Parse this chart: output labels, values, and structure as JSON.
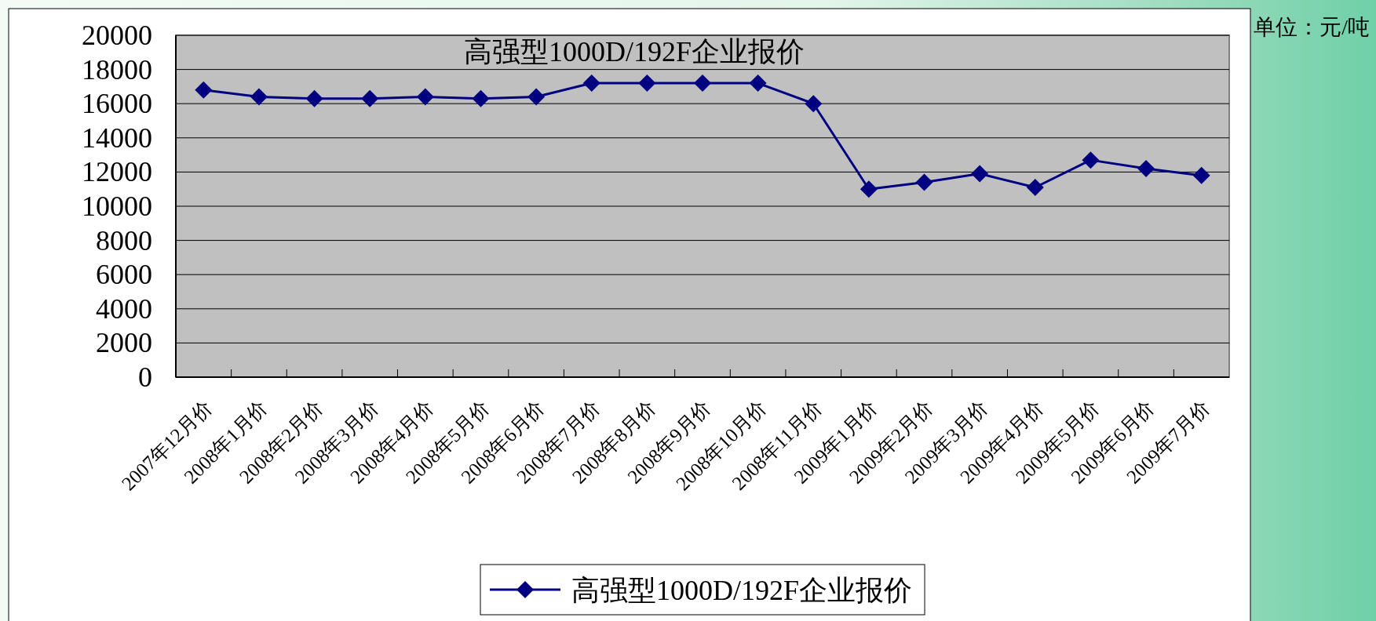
{
  "chart_data": {
    "type": "line",
    "title": "高强型1000D/192F企业报价",
    "annotations": [
      "单位：元/吨"
    ],
    "categories": [
      "2007年12月价",
      "2008年1月价",
      "2008年2月价",
      "2008年3月价",
      "2008年4月价",
      "2008年5月价",
      "2008年6月价",
      "2008年7月价",
      "2008年8月价",
      "2008年9月价",
      "2008年10月价",
      "2008年11月价",
      "2009年1月价",
      "2009年2月价",
      "2009年3月价",
      "2009年4月价",
      "2009年5月价",
      "2009年6月价",
      "2009年7月价"
    ],
    "series": [
      {
        "name": "高强型1000D/192F企业报价",
        "color": "#000080",
        "values": [
          16800,
          16400,
          16300,
          16300,
          16400,
          16300,
          16400,
          17200,
          17200,
          17200,
          17200,
          16000,
          11000,
          11400,
          11900,
          11100,
          12700,
          12200,
          11800
        ]
      }
    ],
    "ylim": [
      0,
      20000
    ],
    "yticks": [
      0,
      2000,
      4000,
      6000,
      8000,
      10000,
      12000,
      14000,
      16000,
      18000,
      20000
    ],
    "grid": "y",
    "legend": "bottom",
    "marker": "diamond"
  }
}
